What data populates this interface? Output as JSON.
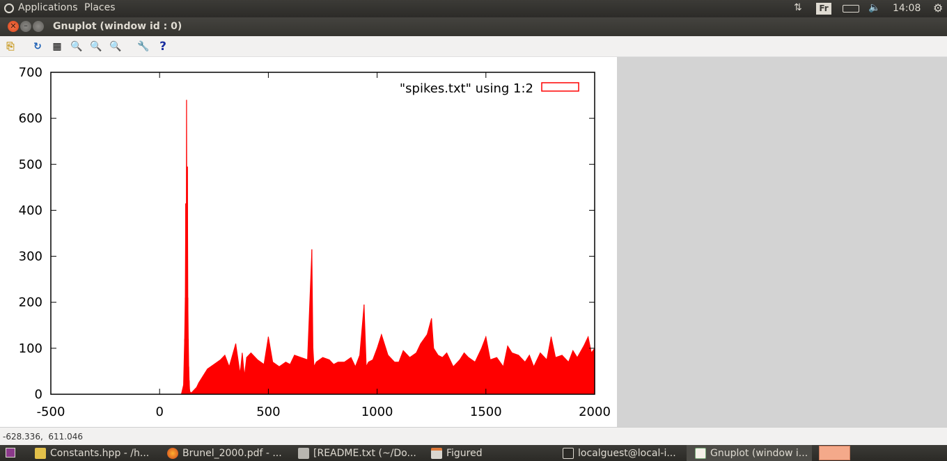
{
  "top_panel": {
    "applications": "Applications",
    "places": "Places",
    "keyboard_layout": "Fr",
    "clock": "14:08",
    "icons": [
      "ubuntu-logo-icon",
      "network-transfer-icon",
      "keyboard-icon",
      "battery-icon",
      "volume-icon",
      "settings-gear-icon"
    ]
  },
  "window": {
    "title": "Gnuplot (window id : 0)",
    "controls": [
      "close-icon",
      "minimize-icon",
      "maximize-icon"
    ]
  },
  "toolbar": {
    "buttons": [
      "copy-clipboard-icon",
      "replot-icon",
      "grid-icon",
      "zoom-previous-icon",
      "zoom-next-icon",
      "autoscale-icon",
      "configure-icon",
      "help-icon"
    ]
  },
  "status": {
    "coordinates": "-628.336,  611.046"
  },
  "taskbar": {
    "items": [
      {
        "label": "Constants.hpp - /h...",
        "icon": "text-editor-icon"
      },
      {
        "label": "Brunel_2000.pdf - ...",
        "icon": "firefox-icon"
      },
      {
        "label": "[README.txt (~/Do...",
        "icon": "text-editor-icon"
      },
      {
        "label": "Figured",
        "icon": "window-icon"
      },
      {
        "label": "localguest@local-i...",
        "icon": "terminal-icon"
      },
      {
        "label": "Gnuplot (window i...",
        "icon": "gnuplot-icon"
      }
    ]
  },
  "chart_data": {
    "type": "area",
    "legend": "\"spikes.txt\" using 1:2",
    "legend_position": "top-right",
    "color": "#ff0000",
    "xlim": [
      -500,
      2000
    ],
    "ylim": [
      0,
      700
    ],
    "xticks": [
      "-500",
      "0",
      "500",
      "1000",
      "1500",
      "2000"
    ],
    "yticks": [
      "0",
      "100",
      "200",
      "300",
      "400",
      "500",
      "600",
      "700"
    ],
    "grid": false,
    "x": [
      100,
      110,
      115,
      118,
      120,
      122,
      124,
      126,
      128,
      130,
      132,
      134,
      136,
      138,
      140,
      145,
      150,
      160,
      170,
      180,
      200,
      220,
      250,
      280,
      300,
      320,
      350,
      370,
      380,
      390,
      400,
      420,
      450,
      480,
      500,
      520,
      550,
      580,
      600,
      620,
      650,
      680,
      700,
      705,
      710,
      720,
      750,
      780,
      800,
      820,
      850,
      880,
      900,
      920,
      940,
      950,
      960,
      980,
      1000,
      1020,
      1050,
      1080,
      1100,
      1120,
      1150,
      1180,
      1200,
      1230,
      1250,
      1260,
      1280,
      1300,
      1320,
      1350,
      1380,
      1400,
      1420,
      1450,
      1480,
      1500,
      1520,
      1550,
      1580,
      1600,
      1620,
      1650,
      1680,
      1700,
      1720,
      1750,
      1780,
      1800,
      1820,
      1850,
      1880,
      1900,
      1920,
      1950,
      1970,
      1985,
      2000
    ],
    "y": [
      0,
      20,
      120,
      210,
      415,
      200,
      640,
      300,
      495,
      210,
      120,
      60,
      30,
      10,
      5,
      3,
      5,
      10,
      15,
      25,
      40,
      55,
      65,
      75,
      85,
      60,
      110,
      45,
      90,
      40,
      80,
      90,
      75,
      65,
      125,
      70,
      60,
      70,
      65,
      85,
      80,
      75,
      315,
      100,
      60,
      70,
      80,
      75,
      65,
      70,
      70,
      80,
      60,
      85,
      195,
      60,
      70,
      75,
      100,
      130,
      85,
      70,
      70,
      95,
      80,
      90,
      110,
      130,
      165,
      100,
      85,
      80,
      90,
      60,
      75,
      90,
      80,
      70,
      100,
      125,
      75,
      80,
      60,
      105,
      90,
      85,
      70,
      85,
      60,
      90,
      75,
      125,
      80,
      85,
      70,
      95,
      80,
      105,
      125,
      90,
      100
    ]
  }
}
